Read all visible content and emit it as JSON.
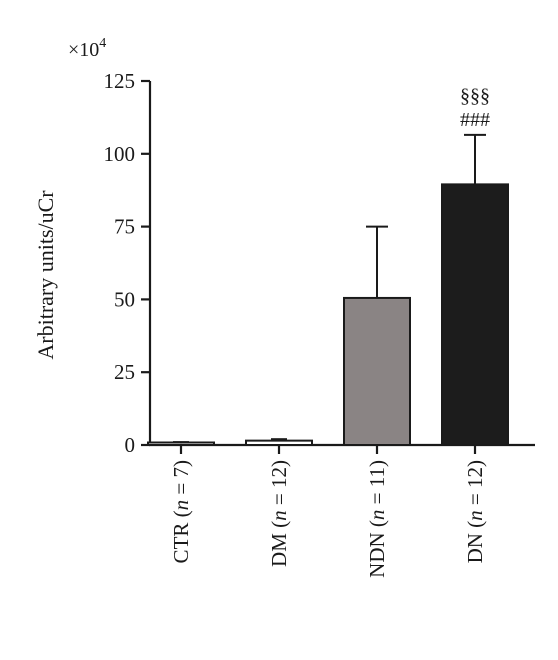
{
  "chart_data": {
    "type": "bar",
    "ylabel": "Arbitrary units/uCr",
    "y_multiplier": "×10",
    "y_multiplier_exp": "4",
    "ylim": [
      0,
      125
    ],
    "yticks": [
      "0",
      "25",
      "50",
      "75",
      "100",
      "125"
    ],
    "ytick_values": [
      0,
      25,
      50,
      75,
      100,
      125
    ],
    "grid": false,
    "categories": [
      {
        "pre": "CTR (",
        "n": "n",
        "post": " = 7)"
      },
      {
        "pre": "DM (",
        "n": "n",
        "post": " = 12)"
      },
      {
        "pre": "NDN (",
        "n": "n",
        "post": " = 11)"
      },
      {
        "pre": "DN (",
        "n": "n",
        "post": " = 12)"
      }
    ],
    "values": [
      0.5,
      1.5,
      50.5,
      89.5
    ],
    "error_upper": [
      1.0,
      2.0,
      75,
      106.5
    ],
    "bar_colors": [
      "#ffffff",
      "#ffffff",
      "#8a8484",
      "#1c1c1c"
    ],
    "annotations": {
      "bar_index": 3,
      "line1": "§§§",
      "line2": "###"
    }
  }
}
